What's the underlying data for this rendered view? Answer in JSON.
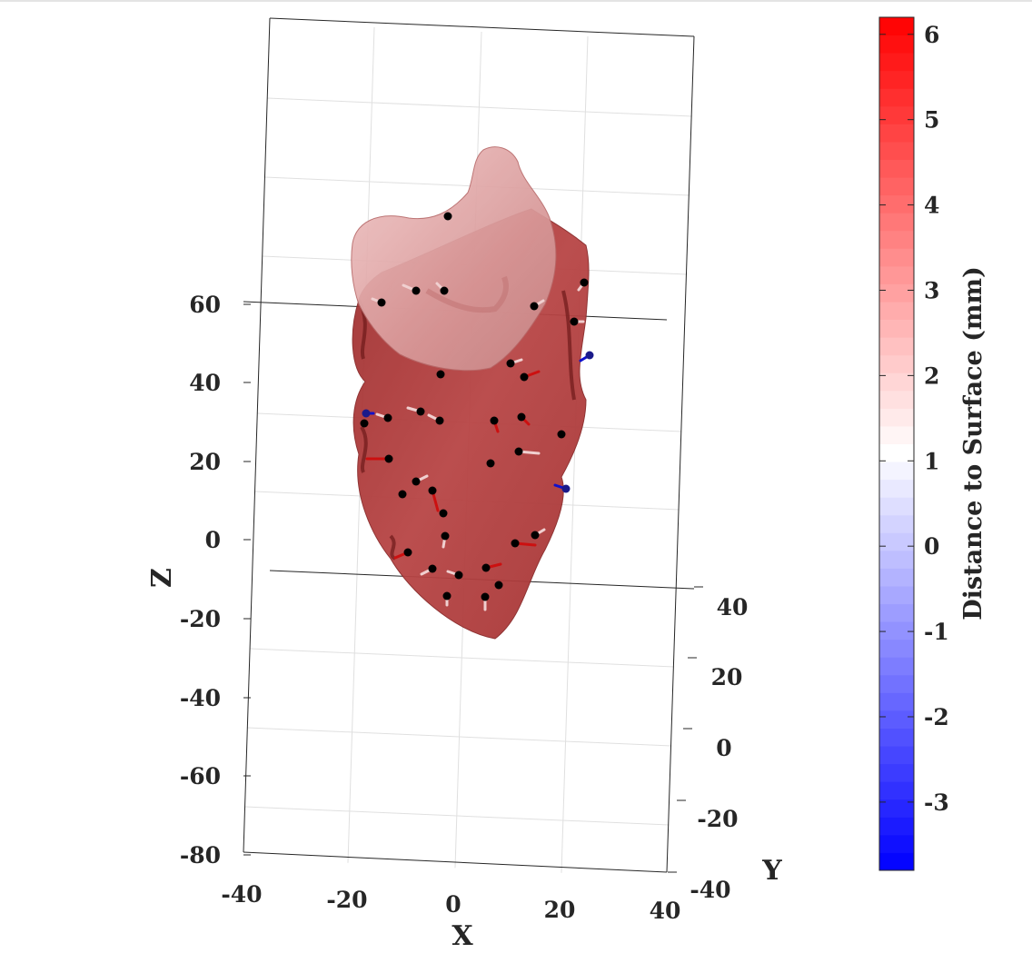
{
  "chart_data": {
    "type": "scatter",
    "subtype": "3d-surface-with-points",
    "xlabel": "X",
    "ylabel": "Y",
    "zlabel": "Z",
    "x_ticks": [
      "-40",
      "-20",
      "0",
      "20",
      "40"
    ],
    "y_ticks": [
      "-40",
      "-20",
      "0",
      "20",
      "40"
    ],
    "z_ticks": [
      "-80",
      "-60",
      "-40",
      "-20",
      "0",
      "20",
      "40",
      "60"
    ],
    "xlim": [
      -40,
      40
    ],
    "ylim": [
      -40,
      40
    ],
    "zlim": [
      -80,
      110
    ],
    "grid": true,
    "colorbar": {
      "title": "Distance to Surface (mm)",
      "ticks": [
        "-3",
        "-2",
        "-1",
        "0",
        "1",
        "2",
        "3",
        "4",
        "5",
        "6"
      ],
      "range": [
        -3.8,
        6.2
      ],
      "colormap": "blue-white-red",
      "placement": "right"
    },
    "surface_color": "#b33a3a",
    "point_color": "#000000",
    "arrow_colors": {
      "positive": "#cc1010",
      "negative": "#1010cc",
      "neutral": "#f0d0d0"
    }
  }
}
